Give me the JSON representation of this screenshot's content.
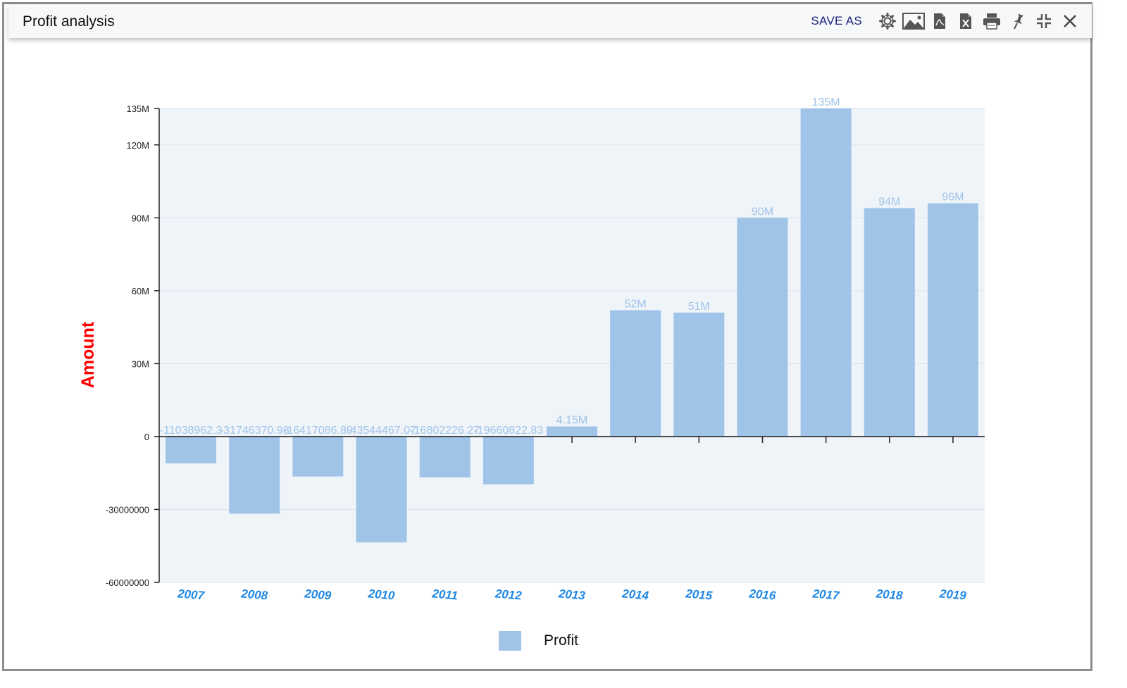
{
  "window": {
    "title": "Profit analysis"
  },
  "toolbar": {
    "save_as_label": "SAVE AS",
    "icons": [
      "gear-icon",
      "image-icon",
      "pdf-icon",
      "excel-icon",
      "print-icon",
      "pin-icon",
      "collapse-icon",
      "close-icon"
    ]
  },
  "colors": {
    "bar": "#a0c4e8",
    "plot_bg": "#eff4f9",
    "ylabel": "#ff0000",
    "xtick": "#1e88e5",
    "bar_label": "#a0c4e8"
  },
  "chart_data": {
    "type": "bar",
    "ylabel": "Amount",
    "categories": [
      "2007",
      "2008",
      "2009",
      "2010",
      "2011",
      "2012",
      "2013",
      "2014",
      "2015",
      "2016",
      "2017",
      "2018",
      "2019"
    ],
    "series": [
      {
        "name": "Profit",
        "values": [
          -11038962.3,
          -31746370.98,
          -16417086.89,
          -43544467.07,
          -16802226.27,
          -19660822.83,
          4150000,
          52000000,
          51000000,
          90000000,
          135000000,
          94000000,
          96000000
        ],
        "labels": [
          "-11038962.3",
          "-31746370.98",
          "-16417086.89",
          "-43544467.07",
          "-16802226.27",
          "-19660822.83",
          "4.15M",
          "52M",
          "51M",
          "90M",
          "135M",
          "94M",
          "96M"
        ]
      }
    ],
    "yticks": [
      {
        "value": 135000000,
        "label": "135M"
      },
      {
        "value": 120000000,
        "label": "120M"
      },
      {
        "value": 90000000,
        "label": "90M"
      },
      {
        "value": 60000000,
        "label": "60M"
      },
      {
        "value": 30000000,
        "label": "30M"
      },
      {
        "value": 0,
        "label": "0"
      },
      {
        "value": -30000000,
        "label": "-30000000"
      },
      {
        "value": -60000000,
        "label": "-60000000"
      }
    ],
    "ylim": [
      -60000000,
      135000000
    ],
    "grid": true,
    "legend_position": "bottom-center"
  }
}
